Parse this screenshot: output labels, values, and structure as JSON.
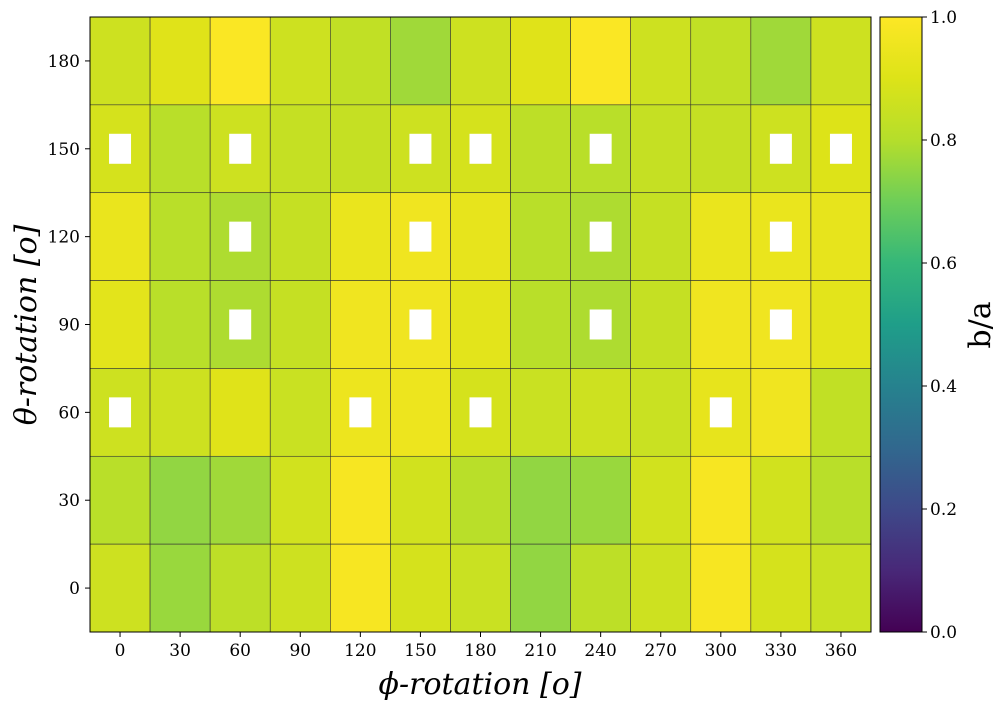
{
  "chart_data": {
    "type": "heatmap",
    "xlabel": "ϕ-rotation [o]",
    "ylabel": "θ-rotation [o]",
    "colorbar_label": "b/a",
    "colorbar_range": [
      0.0,
      1.0
    ],
    "colorbar_ticks": [
      "0.0",
      "0.2",
      "0.4",
      "0.6",
      "0.8",
      "1.0"
    ],
    "colormap": "viridis",
    "x_ticks": [
      "0",
      "30",
      "60",
      "90",
      "120",
      "150",
      "180",
      "210",
      "240",
      "270",
      "300",
      "330",
      "360"
    ],
    "y_ticks": [
      "0",
      "30",
      "60",
      "90",
      "120",
      "150",
      "180"
    ],
    "rows": [
      {
        "theta": "180",
        "values": [
          0.86,
          0.91,
          0.99,
          0.86,
          0.83,
          0.77,
          0.86,
          0.91,
          0.99,
          0.86,
          0.83,
          0.77,
          0.86
        ]
      },
      {
        "theta": "150",
        "values": [
          0.88,
          0.81,
          0.86,
          0.84,
          0.84,
          0.86,
          0.88,
          0.82,
          0.81,
          0.84,
          0.84,
          0.86,
          0.9
        ]
      },
      {
        "theta": "120",
        "values": [
          0.94,
          0.81,
          0.79,
          0.84,
          0.94,
          0.96,
          0.93,
          0.81,
          0.79,
          0.84,
          0.94,
          0.94,
          0.93
        ]
      },
      {
        "theta": "90",
        "values": [
          0.92,
          0.81,
          0.79,
          0.84,
          0.96,
          0.96,
          0.92,
          0.81,
          0.79,
          0.84,
          0.96,
          0.96,
          0.92
        ]
      },
      {
        "theta": "60",
        "values": [
          0.86,
          0.86,
          0.91,
          0.85,
          0.95,
          0.95,
          0.88,
          0.85,
          0.86,
          0.85,
          0.93,
          0.96,
          0.83
        ]
      },
      {
        "theta": "30",
        "values": [
          0.81,
          0.75,
          0.77,
          0.87,
          0.98,
          0.87,
          0.81,
          0.75,
          0.76,
          0.87,
          0.98,
          0.87,
          0.81
        ]
      },
      {
        "theta": "0",
        "values": [
          0.86,
          0.76,
          0.82,
          0.86,
          0.98,
          0.88,
          0.85,
          0.75,
          0.82,
          0.86,
          0.98,
          0.88,
          0.85
        ]
      }
    ],
    "markers": [
      {
        "theta": "150",
        "phi": "0"
      },
      {
        "theta": "150",
        "phi": "60"
      },
      {
        "theta": "150",
        "phi": "150"
      },
      {
        "theta": "150",
        "phi": "180"
      },
      {
        "theta": "150",
        "phi": "240"
      },
      {
        "theta": "150",
        "phi": "330"
      },
      {
        "theta": "150",
        "phi": "360"
      },
      {
        "theta": "120",
        "phi": "60"
      },
      {
        "theta": "120",
        "phi": "150"
      },
      {
        "theta": "120",
        "phi": "240"
      },
      {
        "theta": "120",
        "phi": "330"
      },
      {
        "theta": "90",
        "phi": "60"
      },
      {
        "theta": "90",
        "phi": "150"
      },
      {
        "theta": "90",
        "phi": "240"
      },
      {
        "theta": "90",
        "phi": "330"
      },
      {
        "theta": "60",
        "phi": "0"
      },
      {
        "theta": "60",
        "phi": "120"
      },
      {
        "theta": "60",
        "phi": "180"
      },
      {
        "theta": "60",
        "phi": "300"
      }
    ],
    "marker_color": "#ffffff",
    "grid_line_color": "#333333"
  }
}
